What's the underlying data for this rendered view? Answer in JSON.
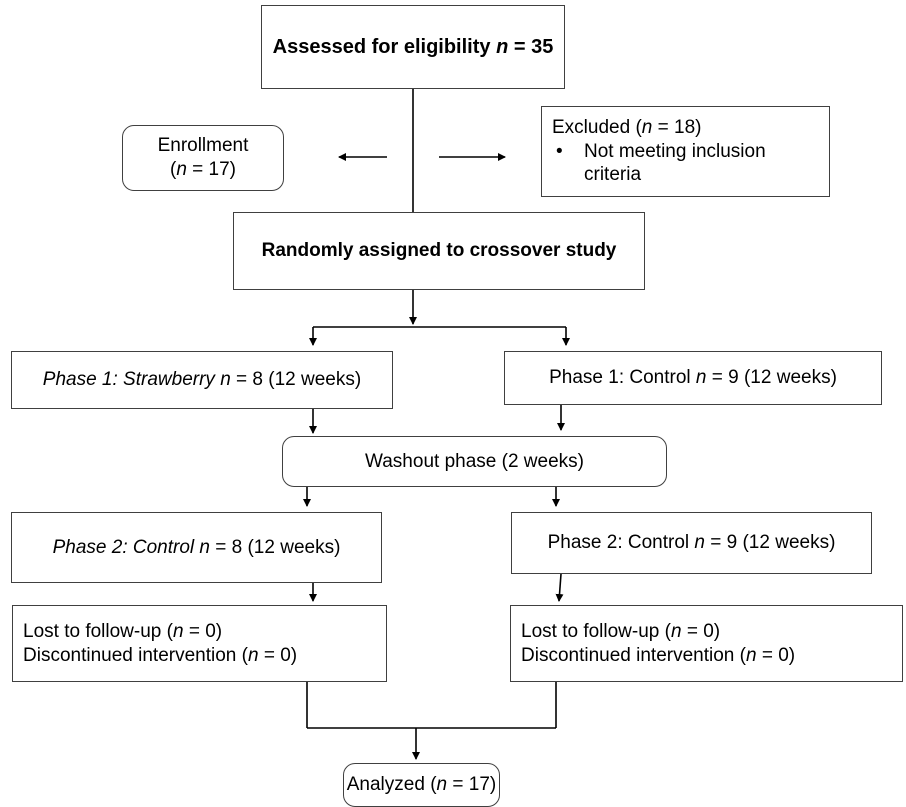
{
  "flowchart": {
    "assessed": {
      "prefix": "Assessed for eligibility ",
      "var": "n",
      "suffix": " = 35"
    },
    "enrollment": {
      "line1": "Enrollment",
      "open": "(",
      "var": "n",
      "suffix": " = 17)"
    },
    "excluded": {
      "prefix": "Excluded (",
      "var": "n",
      "suffix": " = 18)",
      "bullet": "•",
      "bullet_line1": "Not meeting inclusion",
      "bullet_line2": "criteria"
    },
    "randomized": {
      "text": "Randomly assigned to crossover study"
    },
    "phase1_left": {
      "italic": "Phase 1: Strawberry ",
      "var": "n",
      "suffix": " = 8 (12 weeks)"
    },
    "phase1_right": {
      "prefix": "Phase 1: Control ",
      "var": "n",
      "suffix": " = 9 (12 weeks)"
    },
    "washout": {
      "text": "Washout phase (2 weeks)"
    },
    "phase2_left": {
      "italic": "Phase 2: Control ",
      "var": "n",
      "suffix": " = 8 (12 weeks)"
    },
    "phase2_right": {
      "prefix": "Phase 2: Control ",
      "var": "n",
      "suffix": " = 9 (12 weeks)"
    },
    "lost_left": {
      "line1_prefix": "Lost to follow-up (",
      "line1_var": "n",
      "line1_suffix": " = 0)",
      "line2_prefix": "Discontinued intervention (",
      "line2_var": "n",
      "line2_suffix": " = 0)"
    },
    "lost_right": {
      "line1_prefix": "Lost to follow-up (",
      "line1_var": "n",
      "line1_suffix": " = 0)",
      "line2_prefix": "Discontinued intervention (",
      "line2_var": "n",
      "line2_suffix": " = 0)"
    },
    "analyzed": {
      "prefix": "Analyzed (",
      "var": "n",
      "suffix": " = 17)"
    }
  }
}
